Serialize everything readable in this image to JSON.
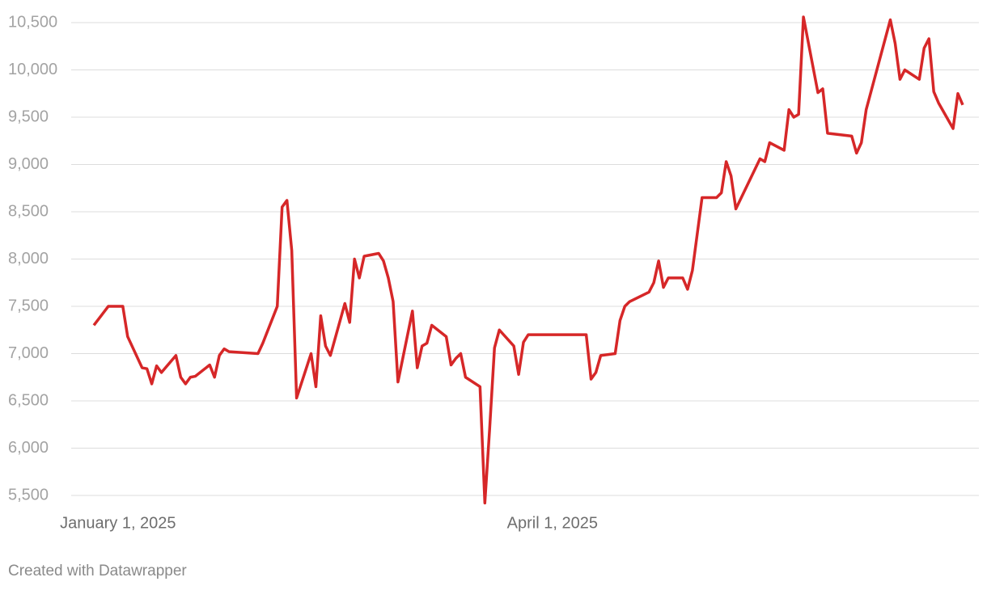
{
  "chart_data": {
    "type": "line",
    "footer": "Created with Datawrapper",
    "color": "#d62728",
    "x": [
      "2024-12-27",
      "2024-12-30",
      "2025-01-02",
      "2025-01-03",
      "2025-01-06",
      "2025-01-07",
      "2025-01-08",
      "2025-01-09",
      "2025-01-10",
      "2025-01-13",
      "2025-01-14",
      "2025-01-15",
      "2025-01-16",
      "2025-01-17",
      "2025-01-20",
      "2025-01-21",
      "2025-01-22",
      "2025-01-23",
      "2025-01-24",
      "2025-01-30",
      "2025-01-31",
      "2025-02-03",
      "2025-02-04",
      "2025-02-05",
      "2025-02-06",
      "2025-02-07",
      "2025-02-10",
      "2025-02-11",
      "2025-02-12",
      "2025-02-13",
      "2025-02-14",
      "2025-02-17",
      "2025-02-18",
      "2025-02-19",
      "2025-02-20",
      "2025-02-21",
      "2025-02-24",
      "2025-02-25",
      "2025-02-26",
      "2025-02-27",
      "2025-02-28",
      "2025-03-03",
      "2025-03-04",
      "2025-03-05",
      "2025-03-06",
      "2025-03-07",
      "2025-03-10",
      "2025-03-11",
      "2025-03-12",
      "2025-03-13",
      "2025-03-14",
      "2025-03-17",
      "2025-03-18",
      "2025-03-19",
      "2025-03-20",
      "2025-03-21",
      "2025-03-24",
      "2025-03-25",
      "2025-03-26",
      "2025-03-27",
      "2025-03-28",
      "2025-04-08",
      "2025-04-09",
      "2025-04-10",
      "2025-04-11",
      "2025-04-14",
      "2025-04-15",
      "2025-04-16",
      "2025-04-17",
      "2025-04-21",
      "2025-04-22",
      "2025-04-23",
      "2025-04-24",
      "2025-04-25",
      "2025-04-28",
      "2025-04-29",
      "2025-04-30",
      "2025-05-02",
      "2025-05-05",
      "2025-05-06",
      "2025-05-07",
      "2025-05-08",
      "2025-05-09",
      "2025-05-14",
      "2025-05-15",
      "2025-05-16",
      "2025-05-19",
      "2025-05-20",
      "2025-05-21",
      "2025-05-22",
      "2025-05-23",
      "2025-05-26",
      "2025-05-27",
      "2025-05-28",
      "2025-06-02",
      "2025-06-03",
      "2025-06-04",
      "2025-06-05",
      "2025-06-10",
      "2025-06-11",
      "2025-06-12",
      "2025-06-13",
      "2025-06-16",
      "2025-06-17",
      "2025-06-18",
      "2025-06-19",
      "2025-06-20",
      "2025-06-23",
      "2025-06-24",
      "2025-06-25"
    ],
    "values": [
      7300,
      7500,
      7500,
      7180,
      6850,
      6840,
      6680,
      6870,
      6800,
      6980,
      6750,
      6680,
      6750,
      6760,
      6880,
      6750,
      6980,
      7050,
      7020,
      7000,
      7110,
      7500,
      8550,
      8620,
      8090,
      6530,
      7000,
      6650,
      7400,
      7080,
      6980,
      7530,
      7330,
      8000,
      7800,
      8030,
      8060,
      7980,
      7800,
      7550,
      6700,
      7450,
      6850,
      7080,
      7110,
      7300,
      7180,
      6880,
      6950,
      7000,
      6750,
      6650,
      5420,
      6210,
      7060,
      7250,
      7080,
      6780,
      7120,
      7200,
      7200,
      7200,
      6730,
      6800,
      6980,
      7000,
      7350,
      7500,
      7550,
      7650,
      7750,
      7980,
      7700,
      7800,
      7800,
      7680,
      7880,
      8650,
      8650,
      8700,
      9030,
      8880,
      8530,
      9060,
      9030,
      9230,
      9150,
      9580,
      9500,
      9530,
      10560,
      9760,
      9800,
      9330,
      9300,
      9120,
      9230,
      9580,
      10530,
      10280,
      9900,
      10000,
      9900,
      10230,
      10330,
      9770,
      9650,
      9380,
      9750,
      9630
    ],
    "xlim": [
      "2024-12-27",
      "2025-06-25"
    ],
    "xticks": [
      {
        "value": "2025-01-01",
        "label": "January 1, 2025"
      },
      {
        "value": "2025-04-01",
        "label": "April 1, 2025"
      }
    ],
    "ylim": [
      5400,
      10600
    ],
    "yticks": [
      {
        "value": 5500,
        "label": "5,500"
      },
      {
        "value": 6000,
        "label": "6,000"
      },
      {
        "value": 6500,
        "label": "6,500"
      },
      {
        "value": 7000,
        "label": "7,000"
      },
      {
        "value": 7500,
        "label": "7,500"
      },
      {
        "value": 8000,
        "label": "8,000"
      },
      {
        "value": 8500,
        "label": "8,500"
      },
      {
        "value": 9000,
        "label": "9,000"
      },
      {
        "value": 9500,
        "label": "9,500"
      },
      {
        "value": 10000,
        "label": "10,000"
      },
      {
        "value": 10500,
        "label": "10,500"
      }
    ],
    "grid": true
  }
}
